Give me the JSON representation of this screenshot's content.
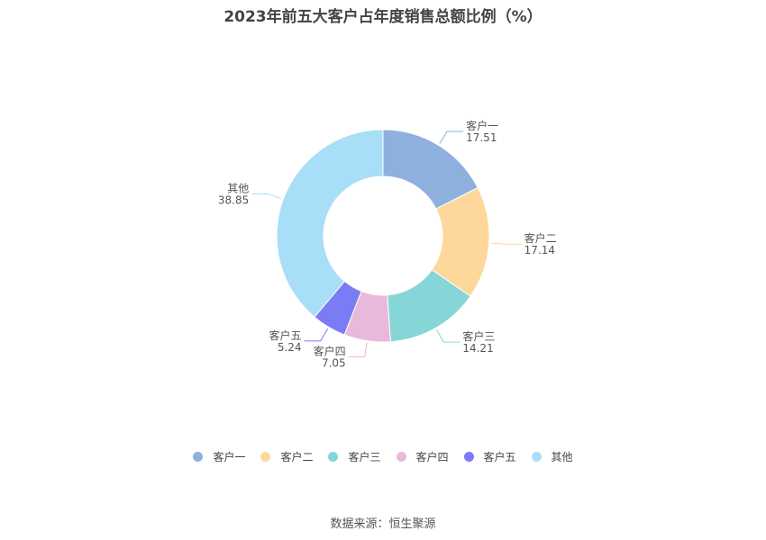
{
  "title": "2023年前五大客户占年度销售总额比例（%）",
  "source": "数据来源：恒生聚源",
  "chart_data": {
    "type": "pie",
    "variant": "donut",
    "title": "2023年前五大客户占年度销售总额比例（%）",
    "categories": [
      "客户一",
      "客户二",
      "客户三",
      "客户四",
      "客户五",
      "其他"
    ],
    "values": [
      17.51,
      17.14,
      14.21,
      7.05,
      5.24,
      38.85
    ],
    "colors": [
      "#8eb0dd",
      "#fed89a",
      "#86d6d8",
      "#e8b9db",
      "#7b7cf4",
      "#a9def8"
    ],
    "legend": "bottom"
  }
}
